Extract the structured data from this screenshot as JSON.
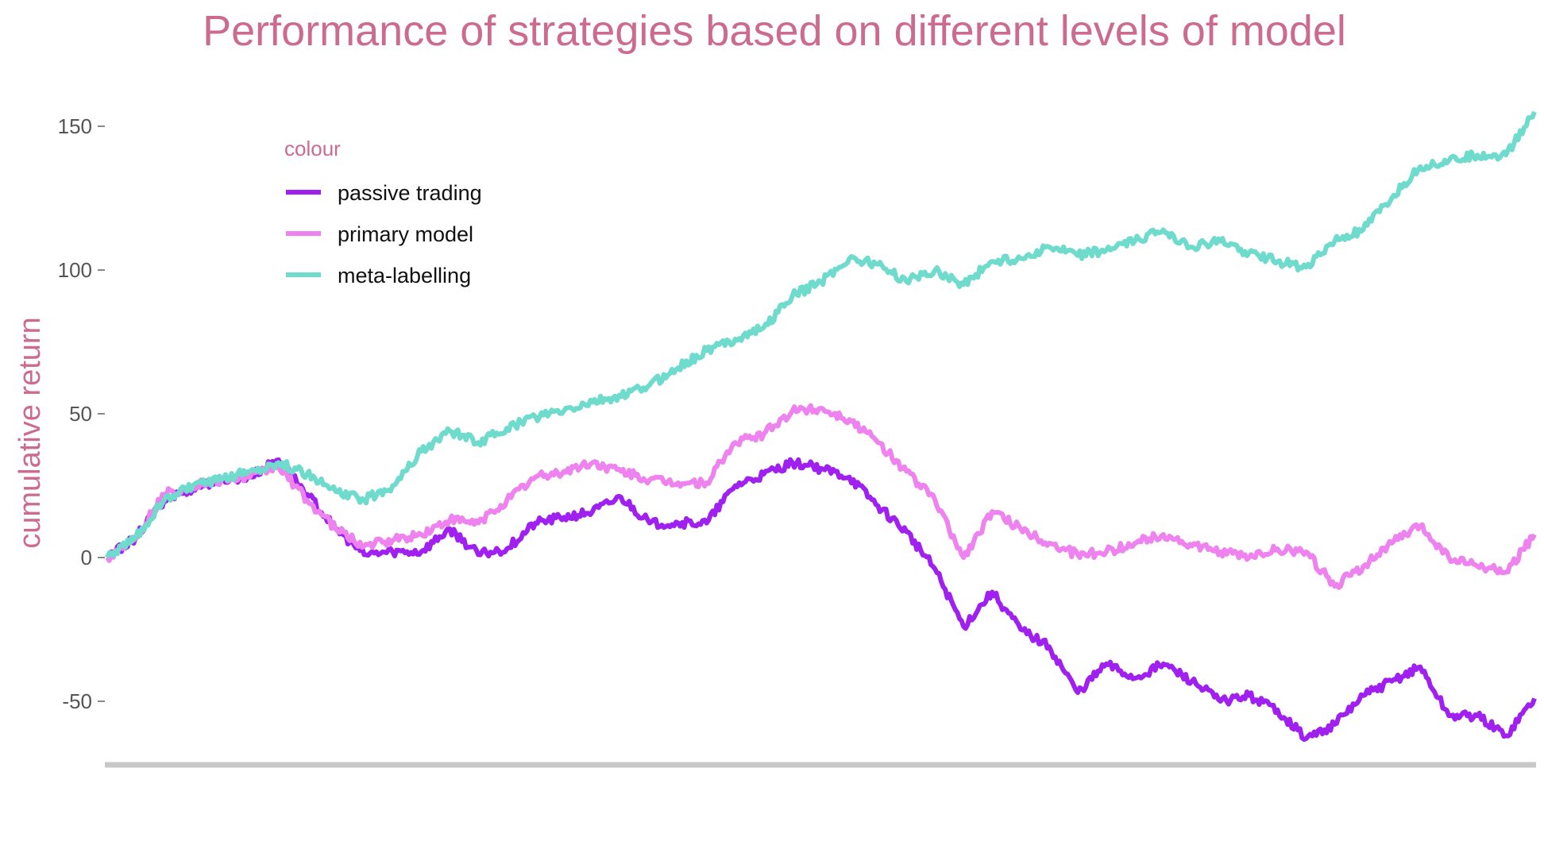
{
  "chart_data": {
    "type": "line",
    "title": "Performance of strategies based on different levels of model",
    "xlabel": "",
    "ylabel": "cumulative return",
    "ylim": [
      -80,
      160
    ],
    "yticks": [
      150,
      100,
      50,
      0,
      -50
    ],
    "ytick_labels": [
      "150",
      "100",
      "50",
      "0",
      "-50"
    ],
    "grid": false,
    "legend": {
      "title": "colour",
      "position": "top-left"
    },
    "x": [
      0,
      2,
      4,
      6,
      8,
      10,
      12,
      14,
      16,
      18,
      20,
      22,
      24,
      26,
      28,
      30,
      32,
      34,
      36,
      38,
      40,
      42,
      44,
      46,
      48,
      50,
      52,
      54,
      56,
      58,
      60,
      62,
      64,
      66,
      68,
      70,
      72,
      74,
      76,
      78,
      80,
      82,
      84,
      86,
      88,
      90,
      92,
      94,
      96,
      98,
      100
    ],
    "series": [
      {
        "name": "passive trading",
        "color": "#a020f0",
        "values": [
          0,
          7,
          20,
          24,
          27,
          28,
          34,
          22,
          10,
          1,
          2,
          2,
          10,
          1,
          3,
          12,
          14,
          16,
          21,
          12,
          12,
          12,
          25,
          29,
          33,
          31,
          28,
          18,
          9,
          -4,
          -24,
          -12,
          -25,
          -31,
          -47,
          -37,
          -42,
          -37,
          -43,
          -50,
          -48,
          -53,
          -63,
          -58,
          -48,
          -43,
          -38,
          -55,
          -55,
          -62,
          -49
        ]
      },
      {
        "name": "primary model",
        "color": "#ee82ee",
        "values": [
          0,
          7,
          22,
          25,
          27,
          28,
          32,
          20,
          10,
          4,
          6,
          8,
          13,
          12,
          20,
          28,
          30,
          33,
          30,
          27,
          26,
          26,
          40,
          43,
          51,
          52,
          48,
          40,
          30,
          20,
          0,
          16,
          10,
          5,
          1,
          2,
          5,
          8,
          4,
          2,
          0,
          3,
          2,
          -10,
          -3,
          5,
          11,
          0,
          -3,
          -5,
          8
        ]
      },
      {
        "name": "meta-labelling",
        "color": "#6edbcc",
        "values": [
          0,
          7,
          20,
          25,
          27,
          30,
          33,
          29,
          23,
          20,
          25,
          37,
          44,
          40,
          45,
          49,
          51,
          54,
          56,
          60,
          66,
          72,
          76,
          80,
          91,
          96,
          104,
          102,
          96,
          100,
          95,
          103,
          104,
          108,
          105,
          107,
          110,
          114,
          108,
          110,
          106,
          103,
          101,
          110,
          114,
          125,
          136,
          138,
          140,
          140,
          155
        ]
      }
    ]
  }
}
